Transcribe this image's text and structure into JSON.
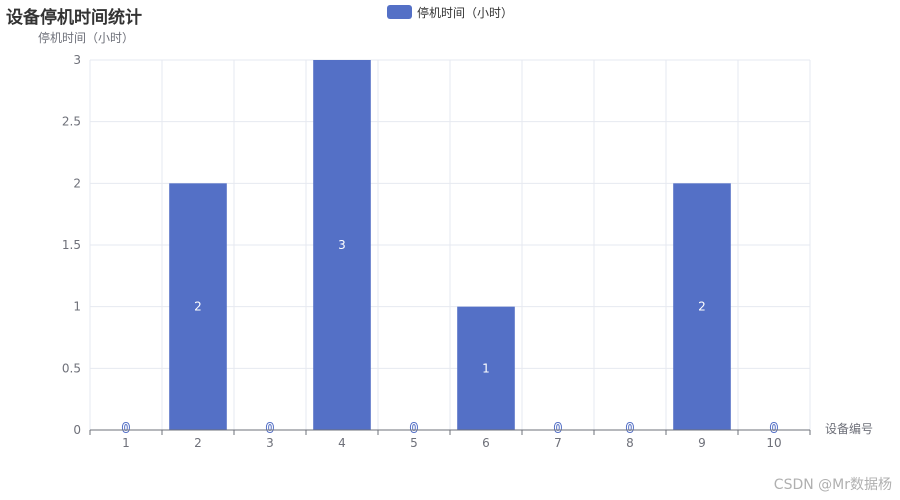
{
  "chart_data": {
    "type": "bar",
    "title": "设备停机时间统计",
    "legend": [
      "停机时间（小时）"
    ],
    "legend_position": "top-center",
    "xlabel": "设备编号",
    "ylabel": "停机时间（小时）",
    "categories": [
      "1",
      "2",
      "3",
      "4",
      "5",
      "6",
      "7",
      "8",
      "9",
      "10"
    ],
    "series": [
      {
        "name": "停机时间（小时）",
        "values": [
          0,
          2,
          0,
          3,
          0,
          1,
          0,
          0,
          2,
          0
        ]
      }
    ],
    "ylim": [
      0,
      3
    ],
    "yticks": [
      "0",
      "0.5",
      "1",
      "1.5",
      "2",
      "2.5",
      "3"
    ],
    "grid": true,
    "data_labels": true,
    "colors": {
      "bar": "#5470c6",
      "grid": "#e6e9f0",
      "axis": "#6e7079"
    }
  },
  "watermark": "CSDN @Mr数据杨"
}
